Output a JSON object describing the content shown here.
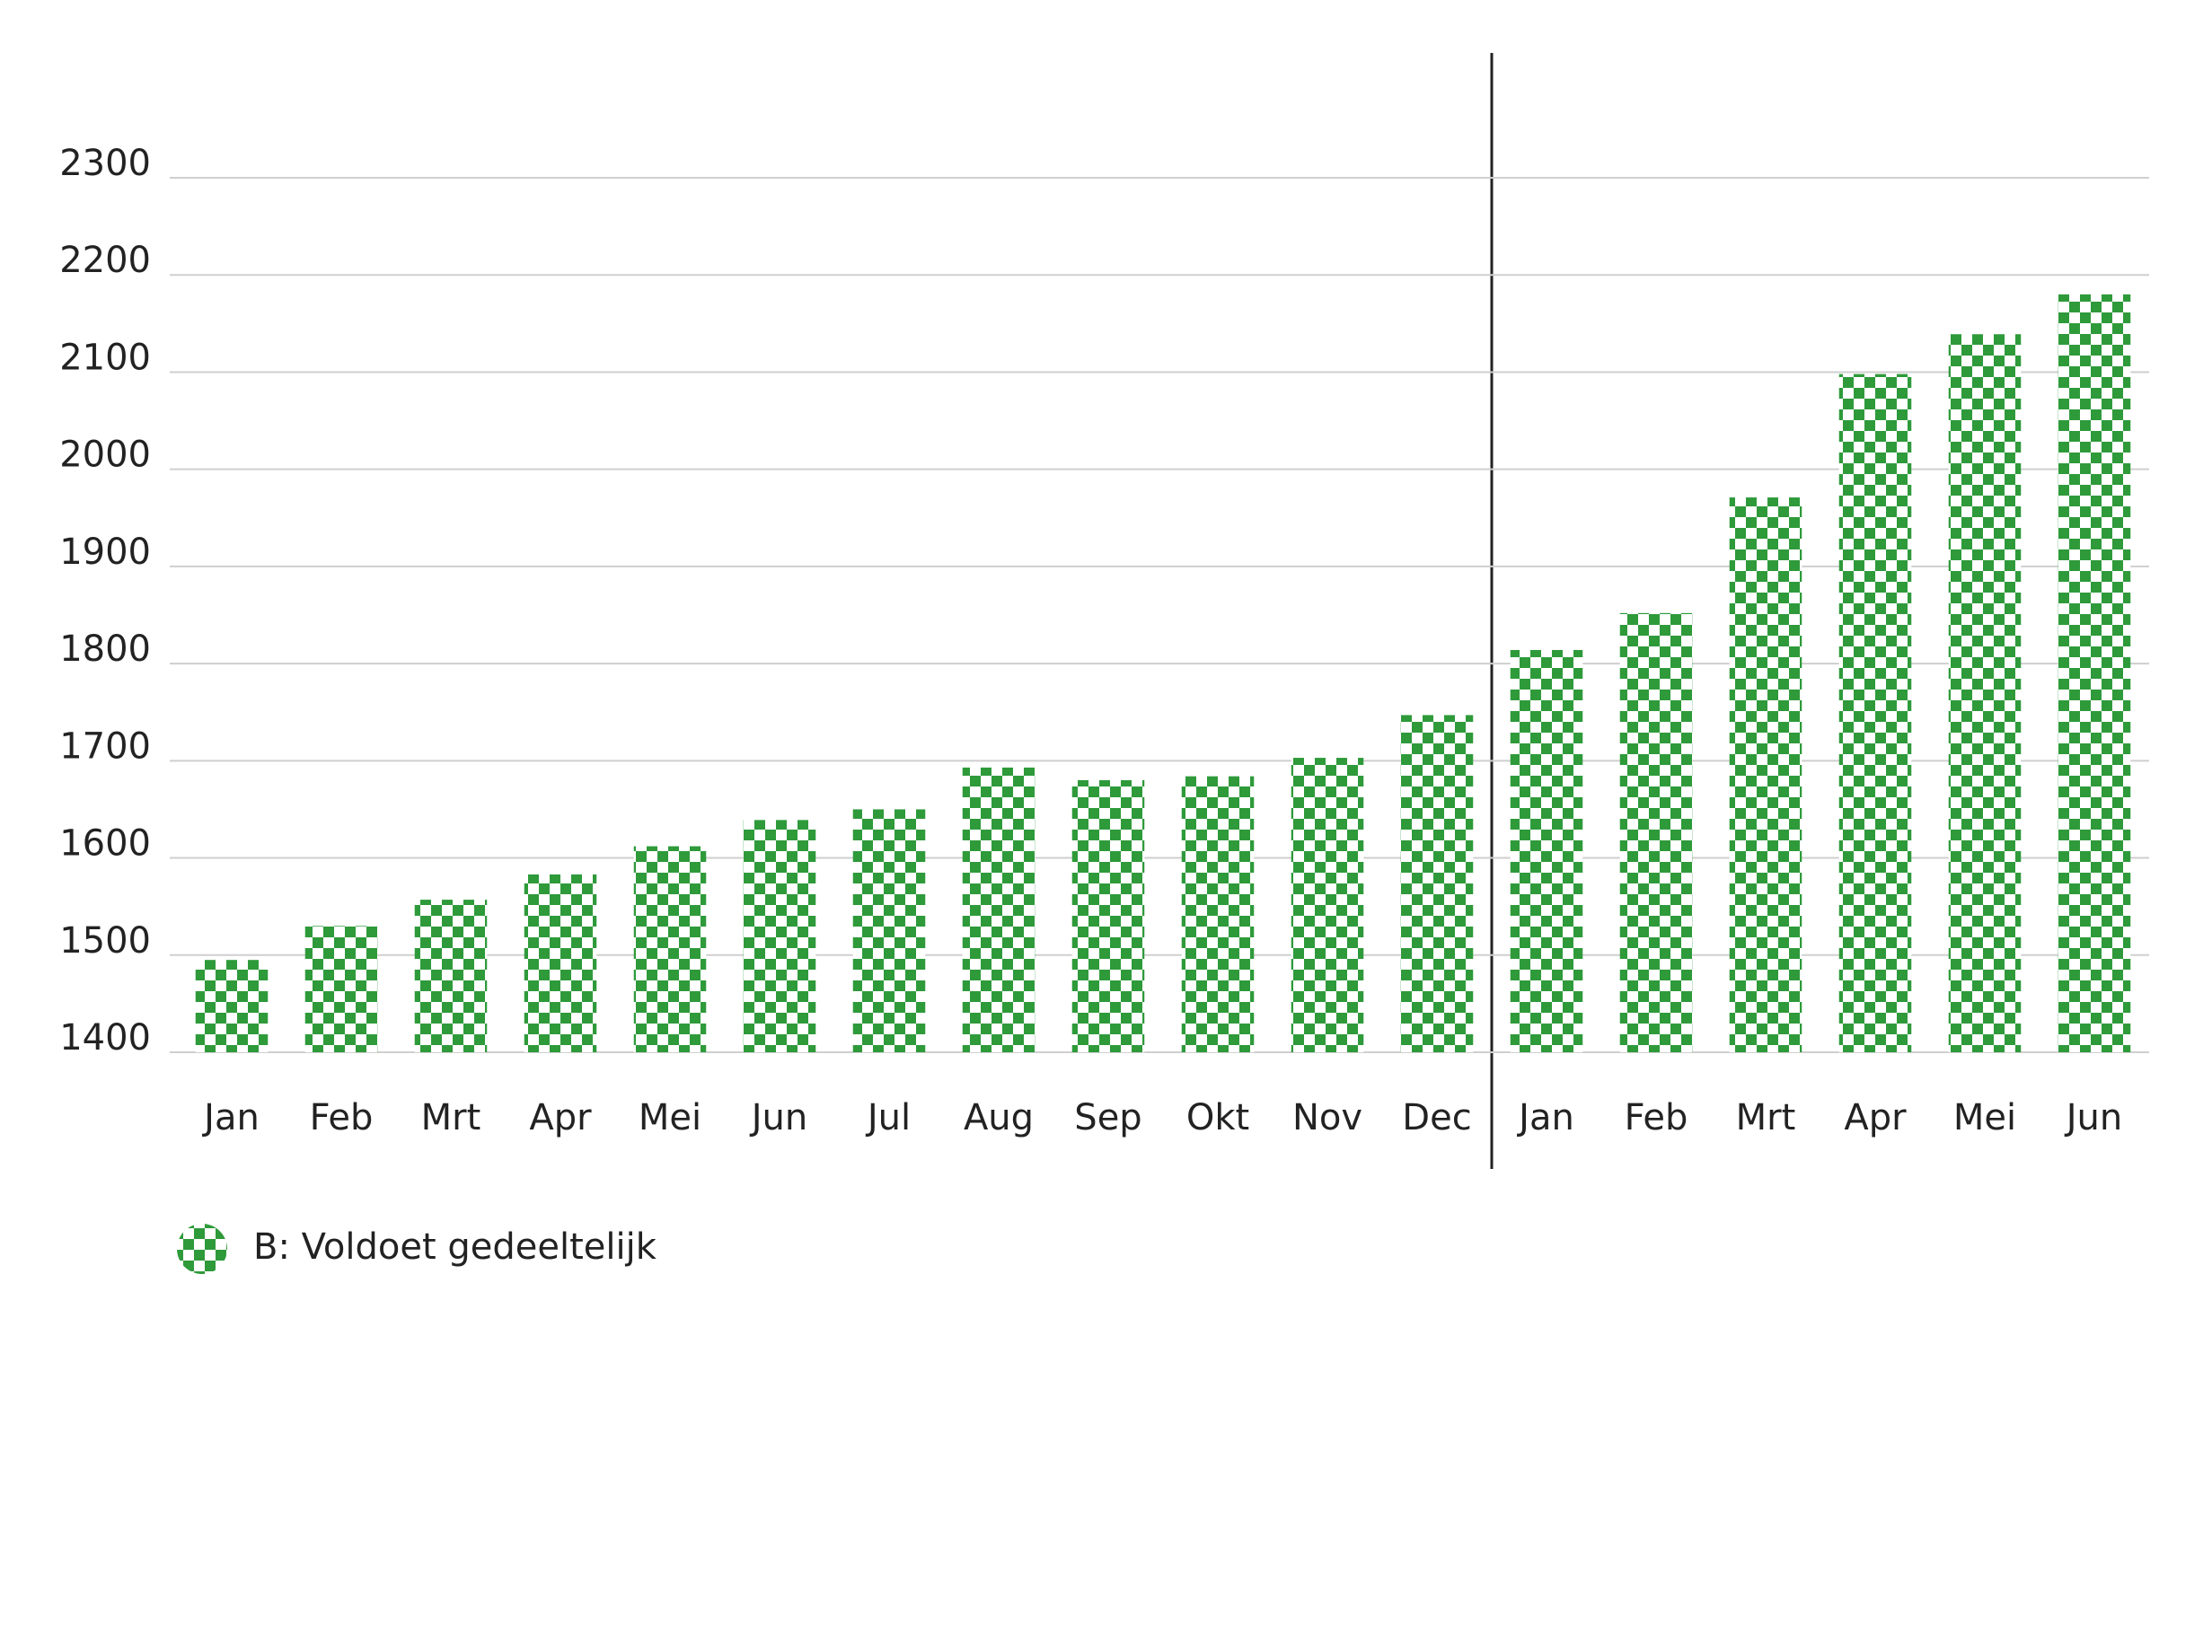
{
  "chart_data": {
    "type": "bar",
    "categories": [
      "Jan",
      "Feb",
      "Mrt",
      "Apr",
      "Mei",
      "Jun",
      "Jul",
      "Aug",
      "Sep",
      "Okt",
      "Nov",
      "Dec",
      "Jan",
      "Feb",
      "Mrt",
      "Apr",
      "Mei",
      "Jun"
    ],
    "series": [
      {
        "name": "B: Voldoet gedeeltelijk",
        "color": "#2e9a3a",
        "values": [
          1495,
          1530,
          1557,
          1583,
          1612,
          1639,
          1650,
          1693,
          1680,
          1684,
          1703,
          1747,
          1814,
          1852,
          1971,
          2098,
          2139,
          2180
        ]
      }
    ],
    "ylim": [
      1400,
      2300
    ],
    "yticks": [
      1400,
      1500,
      1600,
      1700,
      1800,
      1900,
      2000,
      2100,
      2200,
      2300
    ],
    "grid": true
  }
}
